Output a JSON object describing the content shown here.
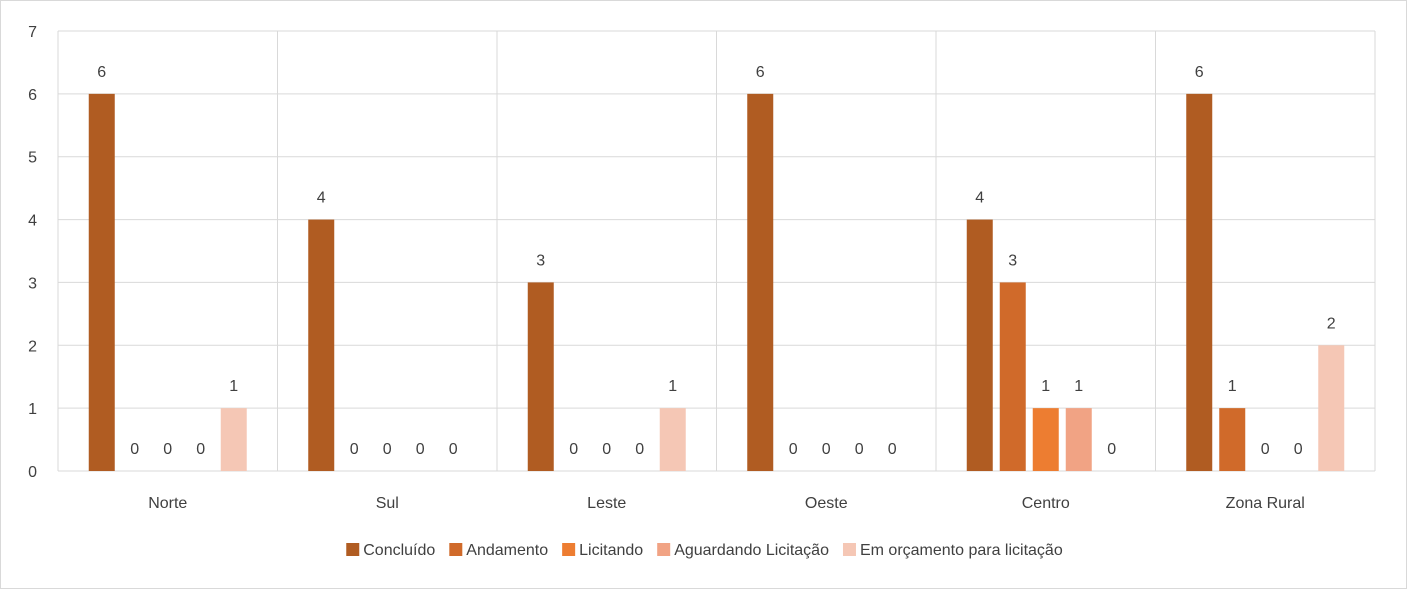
{
  "chart_data": {
    "type": "bar",
    "categories": [
      "Norte",
      "Sul",
      "Leste",
      "Oeste",
      "Centro",
      "Zona Rural"
    ],
    "series": [
      {
        "name": "Concluído",
        "values": [
          6,
          4,
          3,
          6,
          4,
          6
        ],
        "color": "#b05c22"
      },
      {
        "name": "Andamento",
        "values": [
          0,
          0,
          0,
          0,
          3,
          1
        ],
        "color": "#d06a2a"
      },
      {
        "name": "Licitando",
        "values": [
          0,
          0,
          0,
          0,
          1,
          0
        ],
        "color": "#ed7d31"
      },
      {
        "name": "Aguardando Licitação",
        "values": [
          0,
          0,
          0,
          0,
          1,
          0
        ],
        "color": "#f1a384"
      },
      {
        "name": "Em orçamento para licitação",
        "values": [
          1,
          0,
          1,
          0,
          0,
          2
        ],
        "color": "#f5c7b5"
      }
    ],
    "ylim": [
      0,
      7
    ],
    "yticks": [
      0,
      1,
      2,
      3,
      4,
      5,
      6,
      7
    ],
    "grid": true,
    "legend": "bottom",
    "title": "",
    "xlabel": "",
    "ylabel": ""
  }
}
